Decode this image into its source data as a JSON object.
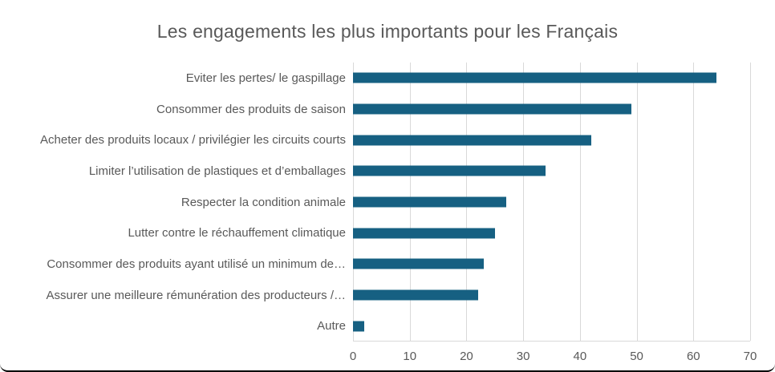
{
  "chart_data": {
    "type": "bar",
    "orientation": "horizontal",
    "title": "Les engagements les plus importants pour les Français",
    "categories": [
      "Eviter les pertes/ le gaspillage",
      "Consommer des produits de saison",
      "Acheter des produits locaux / privilégier les circuits courts",
      "Limiter l’utilisation de plastiques et d’emballages",
      "Respecter la condition animale",
      "Lutter contre le réchauffement climatique",
      "Consommer des produits ayant utilisé un minimum de…",
      "Assurer une meilleure rémunération des producteurs /…",
      "Autre"
    ],
    "values": [
      64,
      49,
      42,
      34,
      27,
      25,
      23,
      22,
      2
    ],
    "xlabel": "",
    "ylabel": "",
    "xlim": [
      0,
      70
    ],
    "xticks": [
      0,
      10,
      20,
      30,
      40,
      50,
      60,
      70
    ],
    "grid": true,
    "legend": false,
    "colors": {
      "bar": "#166082",
      "text": "#595959",
      "gridline": "#d9d9d9",
      "background": "#ffffff"
    }
  }
}
